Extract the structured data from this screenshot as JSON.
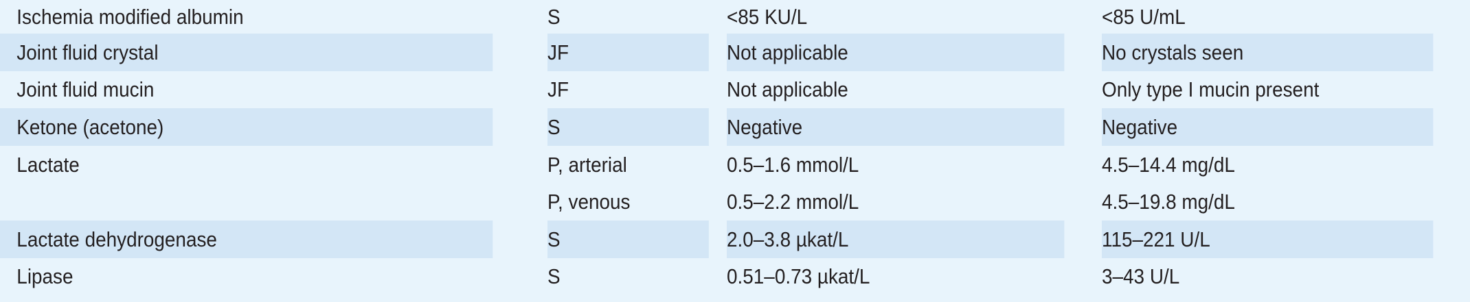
{
  "rows": [
    {
      "test": "Ischemia modified albumin",
      "specimen": "S",
      "si": "<85 KU/L",
      "conventional": "<85 U/mL"
    },
    {
      "test": "Joint fluid crystal",
      "specimen": "JF",
      "si": "Not applicable",
      "conventional": "No crystals seen"
    },
    {
      "test": "Joint fluid mucin",
      "specimen": "JF",
      "si": "Not applicable",
      "conventional": "Only type I mucin present"
    },
    {
      "test": "Ketone (acetone)",
      "specimen": "S",
      "si": "Negative",
      "conventional": "Negative"
    },
    {
      "test": "Lactate",
      "specimen": "P, arterial",
      "si": "0.5–1.6 mmol/L",
      "conventional": "4.5–14.4 mg/dL"
    },
    {
      "test": "",
      "specimen": "P, venous",
      "si": "0.5–2.2 mmol/L",
      "conventional": "4.5–19.8 mg/dL"
    },
    {
      "test": "Lactate dehydrogenase",
      "specimen": "S",
      "si": "2.0–3.8 µkat/L",
      "conventional": "115–221 U/L"
    },
    {
      "test": "Lipase",
      "specimen": "S",
      "si": "0.51–0.73 µkat/L",
      "conventional": "3–43 U/L"
    }
  ],
  "colors": {
    "band_light": "#e8f4fc",
    "band_dark": "#d3e6f6",
    "text": "#231f20"
  }
}
